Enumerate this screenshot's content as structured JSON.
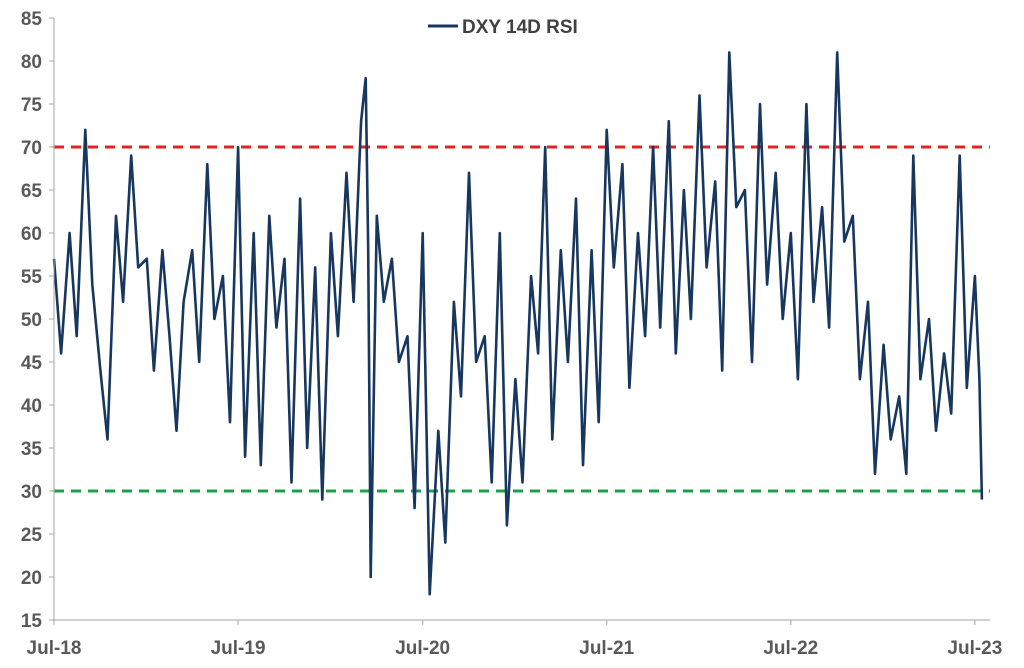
{
  "chart_data": {
    "type": "line",
    "title": "",
    "xlabel": "",
    "ylabel": "",
    "ylim": [
      15,
      85
    ],
    "y_ticks": [
      15,
      20,
      25,
      30,
      35,
      40,
      45,
      50,
      55,
      60,
      65,
      70,
      75,
      80,
      85
    ],
    "x_range": [
      "2018-07-01",
      "2023-07-31"
    ],
    "x_tick_labels": [
      "Jul-18",
      "Jul-19",
      "Jul-20",
      "Jul-21",
      "Jul-22",
      "Jul-23"
    ],
    "x_tick_dates": [
      "2018-07-01",
      "2019-07-01",
      "2020-07-01",
      "2021-07-01",
      "2022-07-01",
      "2023-07-01"
    ],
    "grid": false,
    "legend_position": "top-center",
    "colors": {
      "series": "#17375e",
      "overbought": "#e3231f",
      "oversold": "#1aa14c",
      "axis": "#a6a6a6",
      "text": "#595959"
    },
    "reference_lines": [
      {
        "value": 70,
        "style": "dashed",
        "color": "#e3231f"
      },
      {
        "value": 30,
        "style": "dashed",
        "color": "#1aa14c"
      }
    ],
    "series": [
      {
        "name": "DXY 14D RSI",
        "x": [
          "2018-07-01",
          "2018-07-15",
          "2018-08-01",
          "2018-08-15",
          "2018-09-01",
          "2018-09-15",
          "2018-10-01",
          "2018-10-15",
          "2018-11-01",
          "2018-11-15",
          "2018-12-01",
          "2018-12-15",
          "2019-01-01",
          "2019-01-15",
          "2019-02-01",
          "2019-02-15",
          "2019-03-01",
          "2019-03-15",
          "2019-04-01",
          "2019-04-15",
          "2019-05-01",
          "2019-05-15",
          "2019-06-01",
          "2019-06-15",
          "2019-07-01",
          "2019-07-15",
          "2019-08-01",
          "2019-08-15",
          "2019-09-01",
          "2019-09-15",
          "2019-10-01",
          "2019-10-15",
          "2019-11-01",
          "2019-11-15",
          "2019-12-01",
          "2019-12-15",
          "2020-01-01",
          "2020-01-15",
          "2020-02-01",
          "2020-02-15",
          "2020-03-01",
          "2020-03-10",
          "2020-03-15",
          "2020-03-20",
          "2020-04-01",
          "2020-04-15",
          "2020-05-01",
          "2020-05-15",
          "2020-06-01",
          "2020-06-15",
          "2020-07-01",
          "2020-07-15",
          "2020-08-01",
          "2020-08-15",
          "2020-09-01",
          "2020-09-15",
          "2020-10-01",
          "2020-10-15",
          "2020-11-01",
          "2020-11-15",
          "2020-12-01",
          "2020-12-15",
          "2021-01-01",
          "2021-01-15",
          "2021-02-01",
          "2021-02-15",
          "2021-03-01",
          "2021-03-15",
          "2021-04-01",
          "2021-04-15",
          "2021-05-01",
          "2021-05-15",
          "2021-06-01",
          "2021-06-15",
          "2021-07-01",
          "2021-07-15",
          "2021-08-01",
          "2021-08-15",
          "2021-09-01",
          "2021-09-15",
          "2021-10-01",
          "2021-10-15",
          "2021-11-01",
          "2021-11-15",
          "2021-12-01",
          "2021-12-15",
          "2022-01-01",
          "2022-01-15",
          "2022-02-01",
          "2022-02-15",
          "2022-03-01",
          "2022-03-15",
          "2022-04-01",
          "2022-04-15",
          "2022-05-01",
          "2022-05-15",
          "2022-06-01",
          "2022-06-15",
          "2022-07-01",
          "2022-07-15",
          "2022-08-01",
          "2022-08-15",
          "2022-09-01",
          "2022-09-15",
          "2022-10-01",
          "2022-10-15",
          "2022-11-01",
          "2022-11-15",
          "2022-12-01",
          "2022-12-15",
          "2023-01-01",
          "2023-01-15",
          "2023-02-01",
          "2023-02-15",
          "2023-03-01",
          "2023-03-15",
          "2023-04-01",
          "2023-04-15",
          "2023-05-01",
          "2023-05-15",
          "2023-06-01",
          "2023-06-15",
          "2023-07-01",
          "2023-07-10",
          "2023-07-15"
        ],
        "values": [
          57,
          46,
          60,
          48,
          72,
          54,
          44,
          36,
          62,
          52,
          69,
          56,
          57,
          44,
          58,
          48,
          37,
          52,
          58,
          45,
          68,
          50,
          55,
          38,
          70,
          34,
          60,
          33,
          62,
          49,
          57,
          31,
          64,
          35,
          56,
          29,
          60,
          48,
          67,
          52,
          73,
          78,
          58,
          20,
          62,
          52,
          57,
          45,
          48,
          28,
          60,
          18,
          37,
          24,
          52,
          41,
          67,
          45,
          48,
          31,
          60,
          26,
          43,
          31,
          55,
          46,
          70,
          36,
          58,
          45,
          64,
          33,
          58,
          38,
          72,
          56,
          68,
          42,
          60,
          48,
          70,
          49,
          73,
          46,
          65,
          50,
          76,
          56,
          66,
          44,
          81,
          63,
          65,
          45,
          75,
          54,
          67,
          50,
          60,
          43,
          75,
          52,
          63,
          49,
          81,
          59,
          62,
          43,
          52,
          32,
          47,
          36,
          41,
          32,
          69,
          43,
          50,
          37,
          46,
          39,
          69,
          42,
          55,
          43,
          29
        ]
      }
    ]
  }
}
